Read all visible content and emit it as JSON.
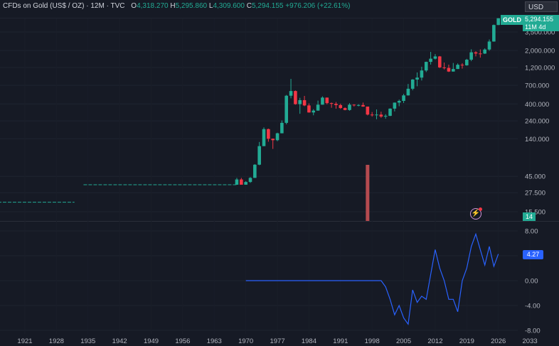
{
  "header": {
    "symbol": "CFDs on Gold (US$ / OZ) · 12M · TVC",
    "o_label": "O",
    "o_value": "4,318.270",
    "h_label": "H",
    "h_value": "5,295.860",
    "l_label": "L",
    "l_value": "4,309.600",
    "c_label": "C",
    "c_value": "5,294.155",
    "change": "+976.206 (+22.61%)"
  },
  "currency": "USD",
  "price_tag": {
    "symbol": "GOLD",
    "price": "5,294.155",
    "countdown": "11M 4d"
  },
  "volume_tag": "14",
  "indicator_tag": "4.27",
  "colors": {
    "background": "#161a25",
    "up": "#22ab94",
    "down": "#f23645",
    "indicator": "#2962ff",
    "text": "#b2b5be",
    "grid": "#1f2430"
  },
  "chart_data": [
    {
      "type": "candlestick",
      "scale": "log",
      "y_ticks": [
        "3,500.000",
        "2,000.000",
        "1,200.000",
        "700.000",
        "400.000",
        "240.000",
        "140.000",
        "45.000",
        "27.500",
        "15.500"
      ],
      "y_tick_values": [
        3500,
        2000,
        1200,
        700,
        400,
        240,
        140,
        45,
        27.5,
        15.5
      ],
      "x_ticks": [
        "1921",
        "1928",
        "1935",
        "1942",
        "1949",
        "1956",
        "1963",
        "1970",
        "1977",
        "1984",
        "1991",
        "1998",
        "2005",
        "2012",
        "2019",
        "2026",
        "2033"
      ],
      "x_tick_values": [
        1921,
        1928,
        1935,
        1942,
        1949,
        1956,
        1963,
        1970,
        1977,
        1984,
        1991,
        1998,
        2005,
        2012,
        2019,
        2026,
        2033
      ],
      "segments": [
        {
          "from": 1915,
          "to": 1932,
          "value": 20.67
        },
        {
          "from": 1934,
          "to": 1968,
          "value": 35
        }
      ],
      "candles": [
        [
          1968,
          35,
          43,
          35,
          41
        ],
        [
          1969,
          41,
          43,
          35,
          35
        ],
        [
          1970,
          35,
          39,
          35,
          38
        ],
        [
          1971,
          38,
          44,
          37,
          43
        ],
        [
          1972,
          43,
          65,
          43,
          64
        ],
        [
          1973,
          64,
          127,
          63,
          112
        ],
        [
          1974,
          112,
          197,
          112,
          187
        ],
        [
          1975,
          187,
          190,
          128,
          140
        ],
        [
          1976,
          140,
          141,
          103,
          134
        ],
        [
          1977,
          134,
          168,
          130,
          165
        ],
        [
          1978,
          165,
          243,
          165,
          226
        ],
        [
          1979,
          226,
          524,
          216,
          512
        ],
        [
          1980,
          512,
          850,
          474,
          590
        ],
        [
          1981,
          590,
          600,
          391,
          397
        ],
        [
          1982,
          397,
          481,
          297,
          448
        ],
        [
          1983,
          448,
          509,
          374,
          382
        ],
        [
          1984,
          382,
          406,
          307,
          309
        ],
        [
          1985,
          309,
          341,
          284,
          327
        ],
        [
          1986,
          327,
          442,
          326,
          391
        ],
        [
          1987,
          391,
          502,
          390,
          484
        ],
        [
          1988,
          484,
          485,
          395,
          410
        ],
        [
          1989,
          410,
          417,
          356,
          401
        ],
        [
          1990,
          401,
          424,
          346,
          386
        ],
        [
          1991,
          386,
          403,
          344,
          353
        ],
        [
          1992,
          353,
          360,
          330,
          333
        ],
        [
          1993,
          333,
          409,
          326,
          391
        ],
        [
          1994,
          391,
          396,
          370,
          383
        ],
        [
          1995,
          383,
          396,
          372,
          387
        ],
        [
          1996,
          387,
          416,
          367,
          369
        ],
        [
          1997,
          369,
          368,
          283,
          290
        ],
        [
          1998,
          290,
          313,
          273,
          288
        ],
        [
          1999,
          288,
          339,
          252,
          290
        ],
        [
          2000,
          290,
          316,
          263,
          273
        ],
        [
          2001,
          273,
          293,
          256,
          279
        ],
        [
          2002,
          279,
          350,
          277,
          347
        ],
        [
          2003,
          347,
          417,
          319,
          416
        ],
        [
          2004,
          416,
          456,
          373,
          438
        ],
        [
          2005,
          438,
          541,
          411,
          517
        ],
        [
          2006,
          517,
          730,
          514,
          632
        ],
        [
          2007,
          632,
          845,
          603,
          834
        ],
        [
          2008,
          834,
          1033,
          681,
          884
        ],
        [
          2009,
          884,
          1227,
          810,
          1096
        ],
        [
          2010,
          1096,
          1431,
          1045,
          1421
        ],
        [
          2011,
          1421,
          1921,
          1309,
          1564
        ],
        [
          2012,
          1564,
          1796,
          1527,
          1675
        ],
        [
          2013,
          1675,
          1696,
          1180,
          1202
        ],
        [
          2014,
          1202,
          1392,
          1131,
          1184
        ],
        [
          2015,
          1184,
          1307,
          1046,
          1061
        ],
        [
          2016,
          1061,
          1375,
          1061,
          1146
        ],
        [
          2017,
          1146,
          1357,
          1146,
          1302
        ],
        [
          2018,
          1302,
          1366,
          1160,
          1281
        ],
        [
          2019,
          1281,
          1557,
          1266,
          1517
        ],
        [
          2020,
          1517,
          2075,
          1451,
          1895
        ],
        [
          2021,
          1895,
          1959,
          1677,
          1829
        ],
        [
          2022,
          1829,
          2070,
          1614,
          1824
        ],
        [
          2023,
          1824,
          2135,
          1804,
          2062
        ],
        [
          2024,
          2062,
          2790,
          1984,
          2624
        ],
        [
          2025,
          2624,
          4380,
          2610,
          4318
        ],
        [
          2026,
          4318,
          5296,
          4310,
          5294
        ]
      ],
      "volume": {
        "x": 1997,
        "value": 14
      }
    },
    {
      "type": "line",
      "y_ticks": [
        "8.00",
        "4.00",
        "0.00",
        "-4.00",
        "-8.00"
      ],
      "y_tick_values": [
        8,
        4,
        0,
        -4,
        -8
      ],
      "x": [
        1970,
        1999,
        2000,
        2001,
        2002,
        2003,
        2004,
        2005,
        2006,
        2007,
        2008,
        2009,
        2010,
        2011,
        2012,
        2013,
        2014,
        2015,
        2016,
        2017,
        2018,
        2019,
        2020,
        2021,
        2022,
        2023,
        2024,
        2025,
        2026
      ],
      "values": [
        0,
        0,
        0,
        -1,
        -3,
        -5.5,
        -4,
        -6,
        -7,
        -1.5,
        -3.5,
        -2.5,
        -3,
        1,
        5,
        2,
        0,
        -3,
        -3,
        -5,
        0,
        2,
        5.5,
        7.5,
        5,
        2.5,
        5.5,
        2.3,
        4.27
      ]
    }
  ]
}
